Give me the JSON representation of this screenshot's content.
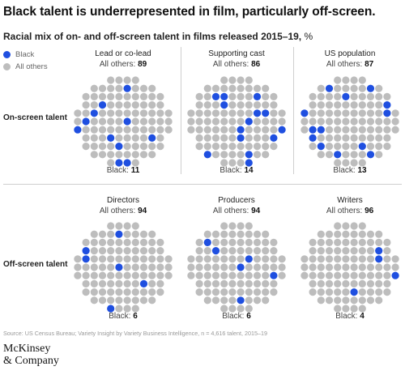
{
  "title": "Black talent is underrepresented in film, particularly off-screen.",
  "subtitle": "Racial mix of on- and off-screen talent in films released 2015–19,",
  "subtitle_unit": " %",
  "legend": [
    {
      "label": "Black",
      "color": "#1f4fe0"
    },
    {
      "label": "All others",
      "color": "#bdbdbd"
    }
  ],
  "row_labels": {
    "on_screen": "On-screen talent",
    "off_screen": "Off-screen talent"
  },
  "others_prefix": "All others: ",
  "black_prefix": "Black: ",
  "colors": {
    "black": "#1f4fe0",
    "others": "#bdbdbd",
    "divider": "#cfcfcf"
  },
  "chart_data": {
    "type": "dot-matrix",
    "unit": "%",
    "series": [
      "Black",
      "All others"
    ],
    "panels": [
      {
        "group": "On-screen talent",
        "name": "Lead or co-lead",
        "black": 11,
        "all_others": 89
      },
      {
        "group": "On-screen talent",
        "name": "Supporting cast",
        "black": 14,
        "all_others": 86
      },
      {
        "group": "On-screen talent",
        "name": "US population",
        "black": 13,
        "all_others": 87
      },
      {
        "group": "Off-screen talent",
        "name": "Directors",
        "black": 6,
        "all_others": 94
      },
      {
        "group": "Off-screen talent",
        "name": "Producers",
        "black": 6,
        "all_others": 94
      },
      {
        "group": "Off-screen talent",
        "name": "Writers",
        "black": 4,
        "all_others": 96
      }
    ]
  },
  "source": "Source: US Census Bureau; Variety Insight by Variety Business Intelligence, n = 4,616 talent, 2015–19",
  "logo": {
    "line1": "McKinsey",
    "line2": "& Company"
  }
}
